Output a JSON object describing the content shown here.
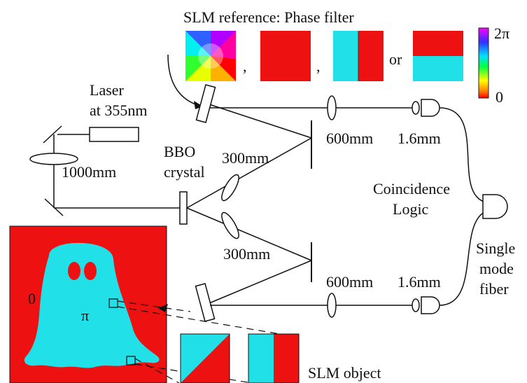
{
  "title": "SLM reference: Phase filter",
  "separators": [
    ",",
    ",",
    "or"
  ],
  "colorbar": {
    "max_label": "2π",
    "min_label": "0"
  },
  "laser": {
    "line1": "Laser",
    "line2": "at 355nm"
  },
  "lens_1000": "1000mm",
  "bbo": {
    "line1": "BBO",
    "line2": "crystal"
  },
  "dist_300_top": "300mm",
  "dist_300_bottom": "300mm",
  "dist_600_top": "600mm",
  "dist_600_bottom": "600mm",
  "dist_16_top": "1.6mm",
  "dist_16_bottom": "1.6mm",
  "coincidence": {
    "line1": "Coincidence",
    "line2": "Logic"
  },
  "fiber": {
    "line1": "Single",
    "line2": "mode",
    "line3": "fiber"
  },
  "object": {
    "label_zero": "0",
    "label_pi": "π"
  },
  "slm_object_label": "SLM object",
  "colors": {
    "red": "#ee1111",
    "cyan": "#22e0e8",
    "line": "#111111"
  }
}
